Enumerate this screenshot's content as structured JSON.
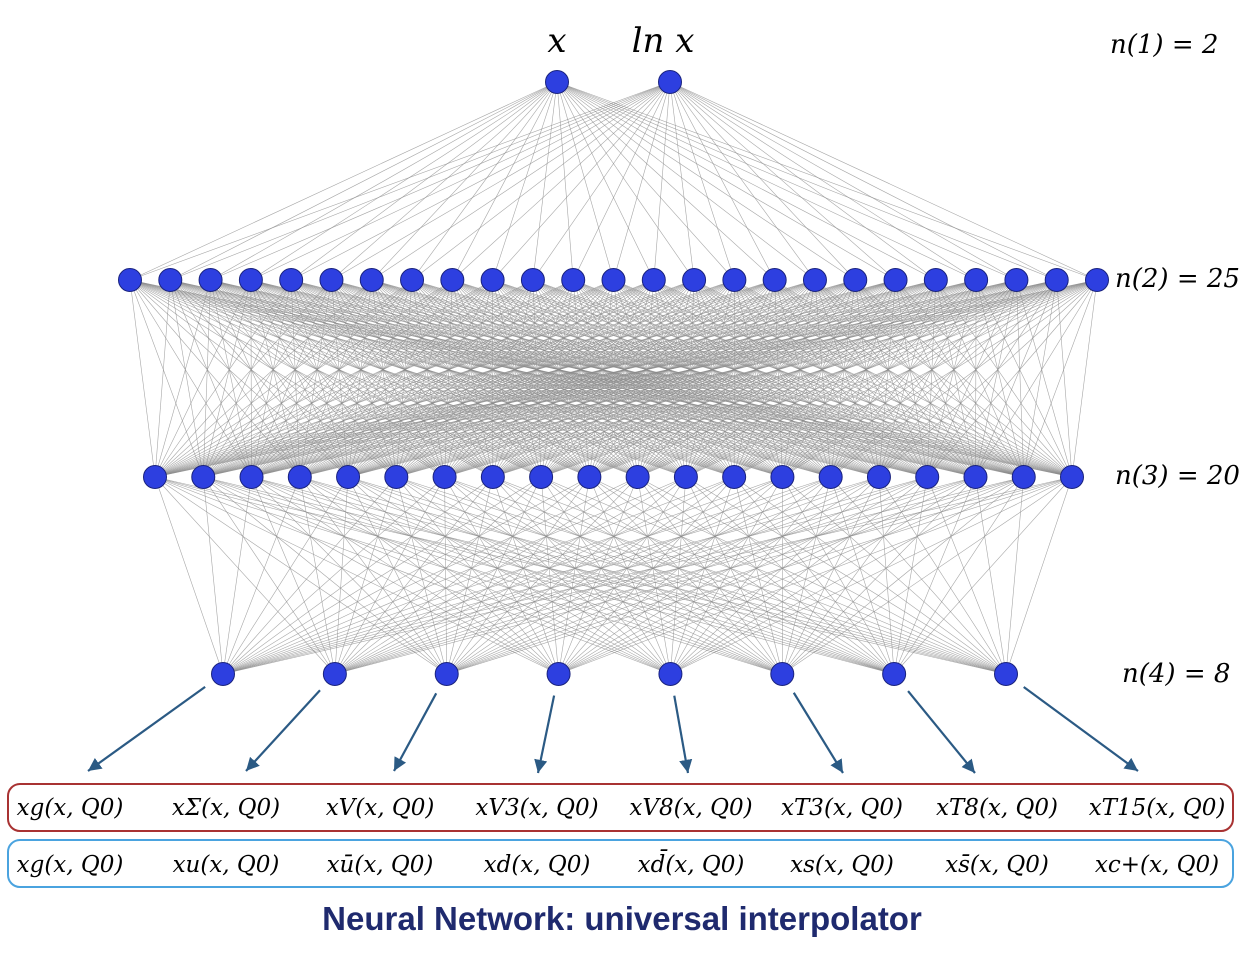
{
  "input_labels": [
    "x",
    "ln x"
  ],
  "layer_labels": [
    "n(1) = 2",
    "n(2) = 25",
    "n(3) = 20",
    "n(4) = 8"
  ],
  "layer_sizes": [
    2,
    25,
    20,
    8
  ],
  "evolution_basis": [
    "xg(x, Q0)",
    "xΣ(x, Q0)",
    "xV(x, Q0)",
    "xV3(x, Q0)",
    "xV8(x, Q0)",
    "xT3(x, Q0)",
    "xT8(x, Q0)",
    "xT15(x, Q0)"
  ],
  "flavour_basis": [
    "xg(x, Q0)",
    "xu(x, Q0)",
    "xū(x, Q0)",
    "xd(x, Q0)",
    "xd̄(x, Q0)",
    "xs(x, Q0)",
    "xs̄(x, Q0)",
    "xc+(x, Q0)"
  ],
  "caption": "Neural Network: universal interpolator",
  "colors": {
    "node": "#2d3fe0",
    "edge": "#8a8a8a",
    "arrow": "#2b5a84",
    "evolution_box": "#a83232",
    "flavour_box": "#4aa3df",
    "caption": "#1f2a6e"
  }
}
